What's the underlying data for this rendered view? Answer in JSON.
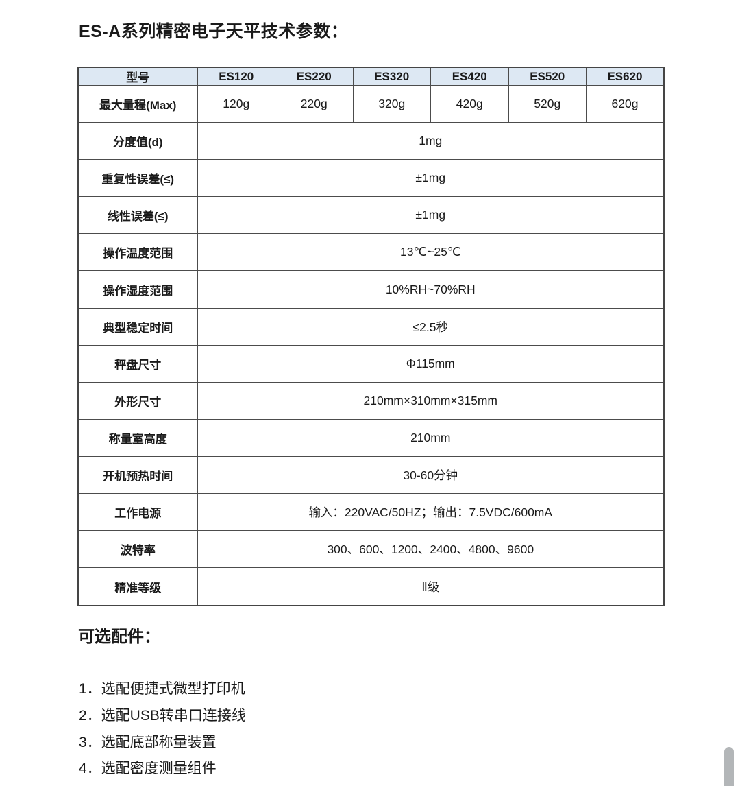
{
  "document": {
    "title": "ES-A系列精密电子天平技术参数："
  },
  "table": {
    "header": {
      "label": "型号",
      "models": [
        "ES120",
        "ES220",
        "ES320",
        "ES420",
        "ES520",
        "ES620"
      ]
    },
    "capacity_row": {
      "label": "最大量程(Max)",
      "values": [
        "120g",
        "220g",
        "320g",
        "420g",
        "520g",
        "620g"
      ]
    },
    "spec_rows": [
      {
        "label": "分度值(d)",
        "value": "1mg"
      },
      {
        "label": "重复性误差(≤)",
        "value": "±1mg"
      },
      {
        "label": "线性误差(≤)",
        "value": "±1mg"
      },
      {
        "label": "操作温度范围",
        "value": "13℃~25℃"
      },
      {
        "label": "操作湿度范围",
        "value": "10%RH~70%RH"
      },
      {
        "label": "典型稳定时间",
        "value": "≤2.5秒"
      },
      {
        "label": "秤盘尺寸",
        "value": "Φ115mm"
      },
      {
        "label": "外形尺寸",
        "value": "210mm×310mm×315mm"
      },
      {
        "label": "称量室高度",
        "value": "210mm"
      },
      {
        "label": "开机预热时间",
        "value": "30-60分钟"
      },
      {
        "label": "工作电源",
        "value": "输入：220VAC/50HZ；输出：7.5VDC/600mA"
      },
      {
        "label": "波特率",
        "value": "300、600、1200、2400、4800、9600"
      },
      {
        "label": "精准等级",
        "value": "Ⅱ级"
      }
    ]
  },
  "accessories": {
    "title": "可选配件：",
    "items": [
      "1．选配便捷式微型打印机",
      "2．选配USB转串口连接线",
      "3．选配底部称量装置",
      "4．选配密度测量组件"
    ]
  },
  "colors": {
    "header_bg": "#dde8f3",
    "table_border": "#4c4c4c",
    "text": "#1a1a1a",
    "scrollbar_thumb": "#b3b6b8"
  }
}
